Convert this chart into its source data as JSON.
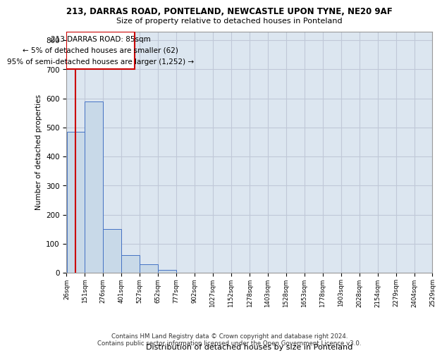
{
  "title_line1": "213, DARRAS ROAD, PONTELAND, NEWCASTLE UPON TYNE, NE20 9AF",
  "title_line2": "Size of property relative to detached houses in Ponteland",
  "xlabel": "Distribution of detached houses by size in Ponteland",
  "ylabel": "Number of detached properties",
  "footer_line1": "Contains HM Land Registry data © Crown copyright and database right 2024.",
  "footer_line2": "Contains public sector information licensed under the Open Government Licence v3.0.",
  "annotation_line1": "213 DARRAS ROAD: 85sqm",
  "annotation_line2": "← 5% of detached houses are smaller (62)",
  "annotation_line3": "95% of semi-detached houses are larger (1,252) →",
  "property_size": 85,
  "bin_edges": [
    26,
    151,
    276,
    401,
    527,
    652,
    777,
    902,
    1027,
    1152,
    1278,
    1403,
    1528,
    1653,
    1778,
    1903,
    2028,
    2154,
    2279,
    2404,
    2529
  ],
  "bar_heights": [
    485,
    590,
    150,
    62,
    30,
    10,
    0,
    0,
    0,
    0,
    0,
    0,
    0,
    0,
    0,
    0,
    0,
    0,
    0,
    0
  ],
  "bar_color": "#c8d9e8",
  "bar_edge_color": "#4472c4",
  "red_line_x": 85,
  "annotation_box_color": "#ffffff",
  "annotation_box_edge_color": "#cc0000",
  "grid_color": "#c0c8d8",
  "ylim": [
    0,
    830
  ],
  "background_color": "#dce6f0",
  "yticks": [
    0,
    100,
    200,
    300,
    400,
    500,
    600,
    700,
    800
  ]
}
